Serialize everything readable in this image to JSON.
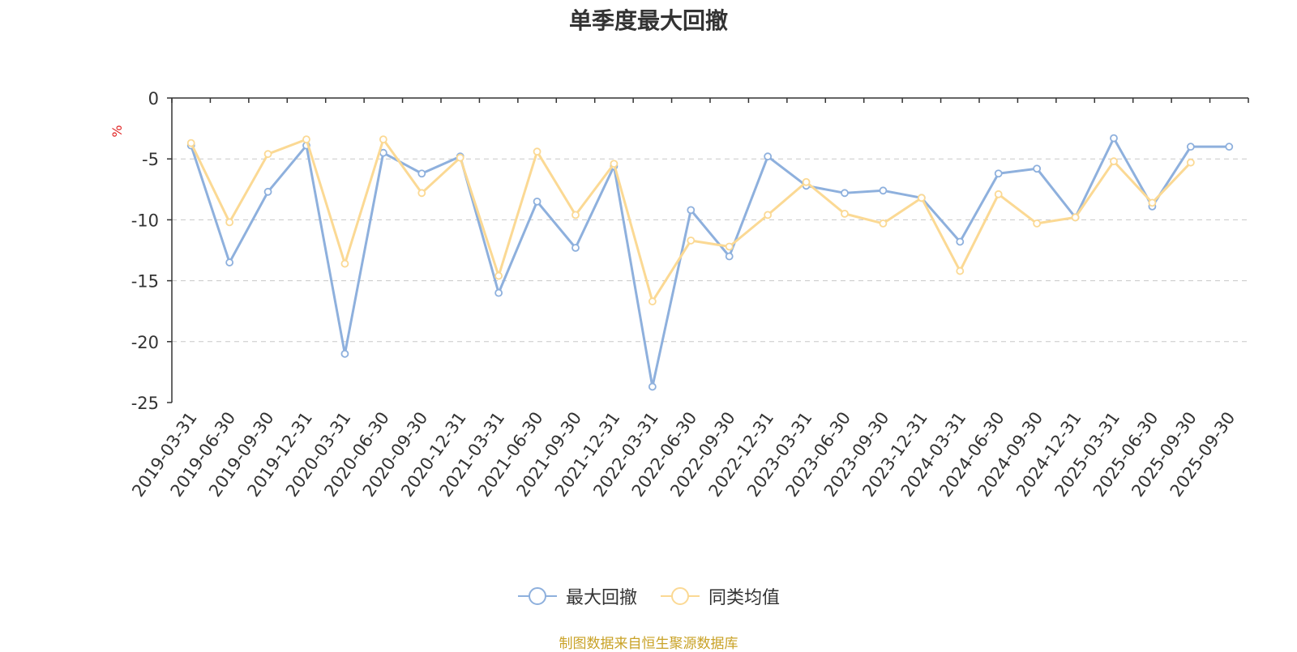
{
  "chart_data": {
    "type": "line",
    "title": "单季度最大回撤",
    "ylabel": "%",
    "ylim": [
      -25,
      0
    ],
    "yticks": [
      0,
      -5,
      -10,
      -15,
      -20,
      -25
    ],
    "grid": true,
    "legend_position": "bottom",
    "categories": [
      "2019-03-31",
      "2019-06-30",
      "2019-09-30",
      "2019-12-31",
      "2020-03-31",
      "2020-06-30",
      "2020-09-30",
      "2020-12-31",
      "2021-03-31",
      "2021-06-30",
      "2021-09-30",
      "2021-12-31",
      "2022-03-31",
      "2022-06-30",
      "2022-09-30",
      "2022-12-31",
      "2023-03-31",
      "2023-06-30",
      "2023-09-30",
      "2023-12-31",
      "2024-03-31",
      "2024-06-30",
      "2024-09-30",
      "2024-12-31",
      "2025-03-31",
      "2025-06-30",
      "2025-09-30",
      "2025-09-30"
    ],
    "series": [
      {
        "name": "最大回撤",
        "color": "#8eb0dd",
        "values": [
          -3.9,
          -13.5,
          -7.7,
          -3.9,
          -21.0,
          -4.5,
          -6.2,
          -4.8,
          -16.0,
          -8.5,
          -12.3,
          -5.6,
          -23.7,
          -9.2,
          -13.0,
          -4.8,
          -7.2,
          -7.8,
          -7.6,
          -8.2,
          -11.8,
          -6.2,
          -5.8,
          -9.8,
          -3.3,
          -8.9,
          -4.0,
          -4.0
        ]
      },
      {
        "name": "同类均值",
        "color": "#fbd994",
        "values": [
          -3.7,
          -10.2,
          -4.6,
          -3.4,
          -13.6,
          -3.4,
          -7.8,
          -4.9,
          -14.6,
          -4.4,
          -9.6,
          -5.4,
          -16.7,
          -11.7,
          -12.2,
          -9.6,
          -6.9,
          -9.5,
          -10.3,
          -8.2,
          -14.2,
          -7.9,
          -10.3,
          -9.8,
          -5.2,
          -8.6,
          -5.3,
          null
        ]
      }
    ]
  },
  "footer": {
    "source": "制图数据来自恒生聚源数据库"
  }
}
